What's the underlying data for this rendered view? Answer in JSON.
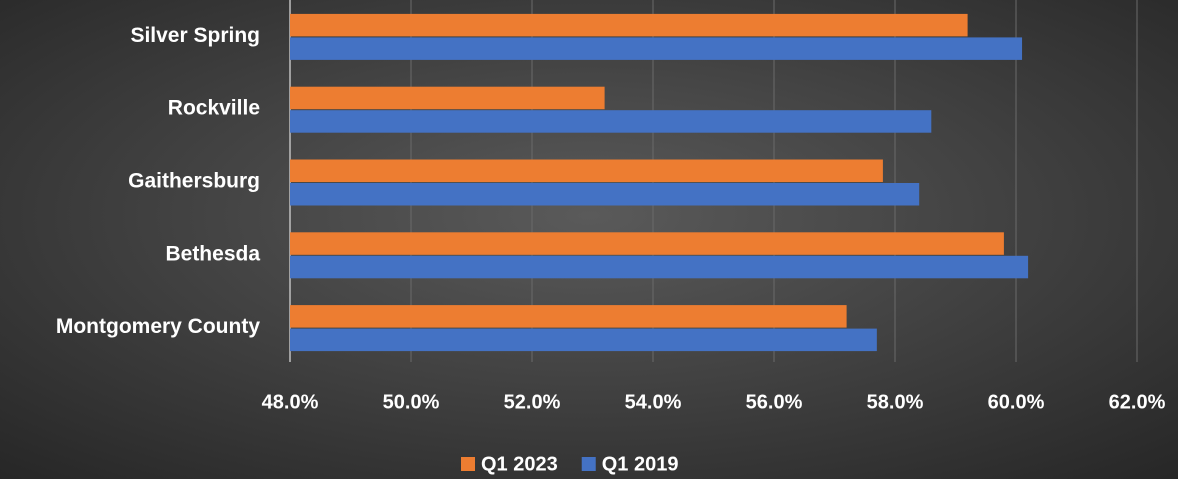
{
  "chart_data": {
    "type": "bar",
    "orientation": "horizontal",
    "categories": [
      "Silver Spring",
      "Rockville",
      "Gaithersburg",
      "Bethesda",
      "Montgomery County"
    ],
    "series": [
      {
        "name": "Q1 2023",
        "color": "#ed7d31",
        "values": [
          59.2,
          53.2,
          57.8,
          59.8,
          57.2
        ]
      },
      {
        "name": "Q1 2019",
        "color": "#4472c4",
        "values": [
          60.1,
          58.6,
          58.4,
          60.2,
          57.7
        ]
      }
    ],
    "xlim": [
      48,
      62
    ],
    "xticks": [
      {
        "value": 48,
        "label": "48.0%"
      },
      {
        "value": 50,
        "label": "50.0%"
      },
      {
        "value": 52,
        "label": "52.0%"
      },
      {
        "value": 54,
        "label": "54.0%"
      },
      {
        "value": 56,
        "label": "56.0%"
      },
      {
        "value": 58,
        "label": "58.0%"
      },
      {
        "value": 60,
        "label": "60.0%"
      },
      {
        "value": 62,
        "label": "62.0%"
      }
    ],
    "grid": true,
    "legend": "bottom"
  }
}
